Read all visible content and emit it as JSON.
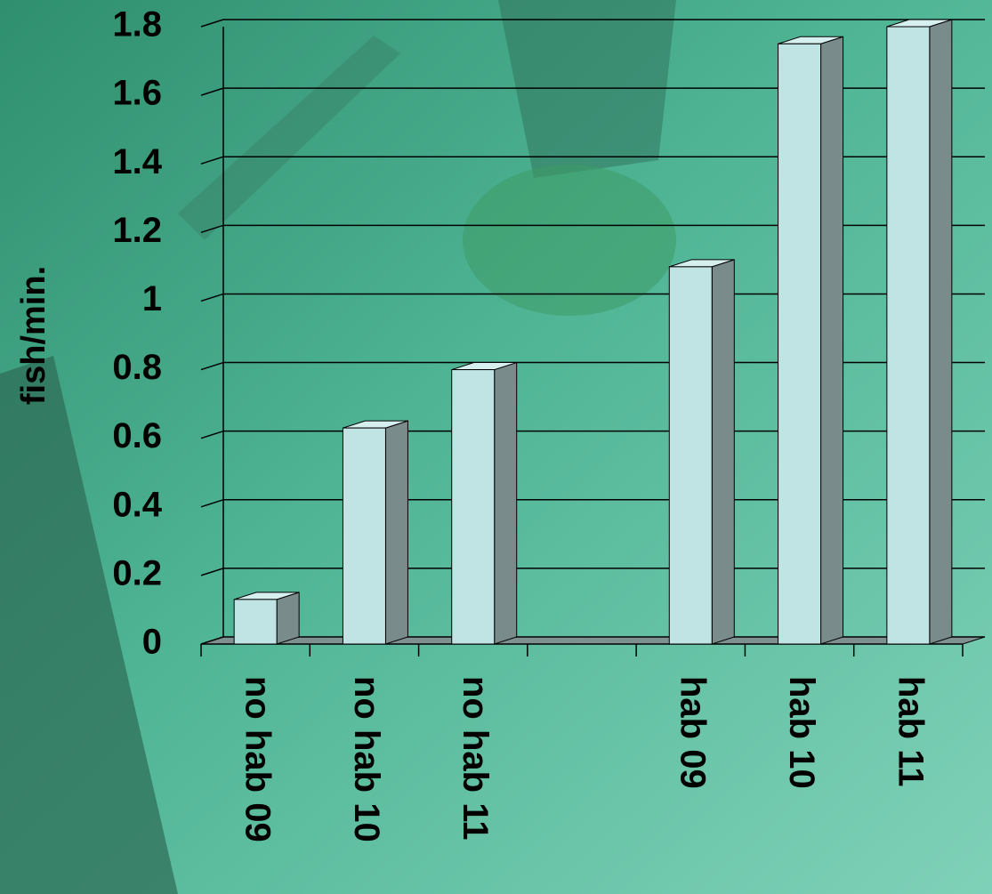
{
  "chart_data": {
    "type": "bar",
    "y_label": "fish/min.",
    "categories": [
      "no hab 09",
      "no hab 10",
      "no hab 11",
      null,
      "hab 09",
      "hab 10",
      "hab 11"
    ],
    "values": [
      0.13,
      0.63,
      0.8,
      null,
      1.1,
      1.75,
      1.8
    ],
    "color": "#c0e3e3",
    "ylim": [
      0,
      1.8
    ],
    "yticks": [
      0,
      0.2,
      0.4,
      0.6,
      0.8,
      1,
      1.2,
      1.4,
      1.6,
      1.8
    ],
    "grid": true
  }
}
